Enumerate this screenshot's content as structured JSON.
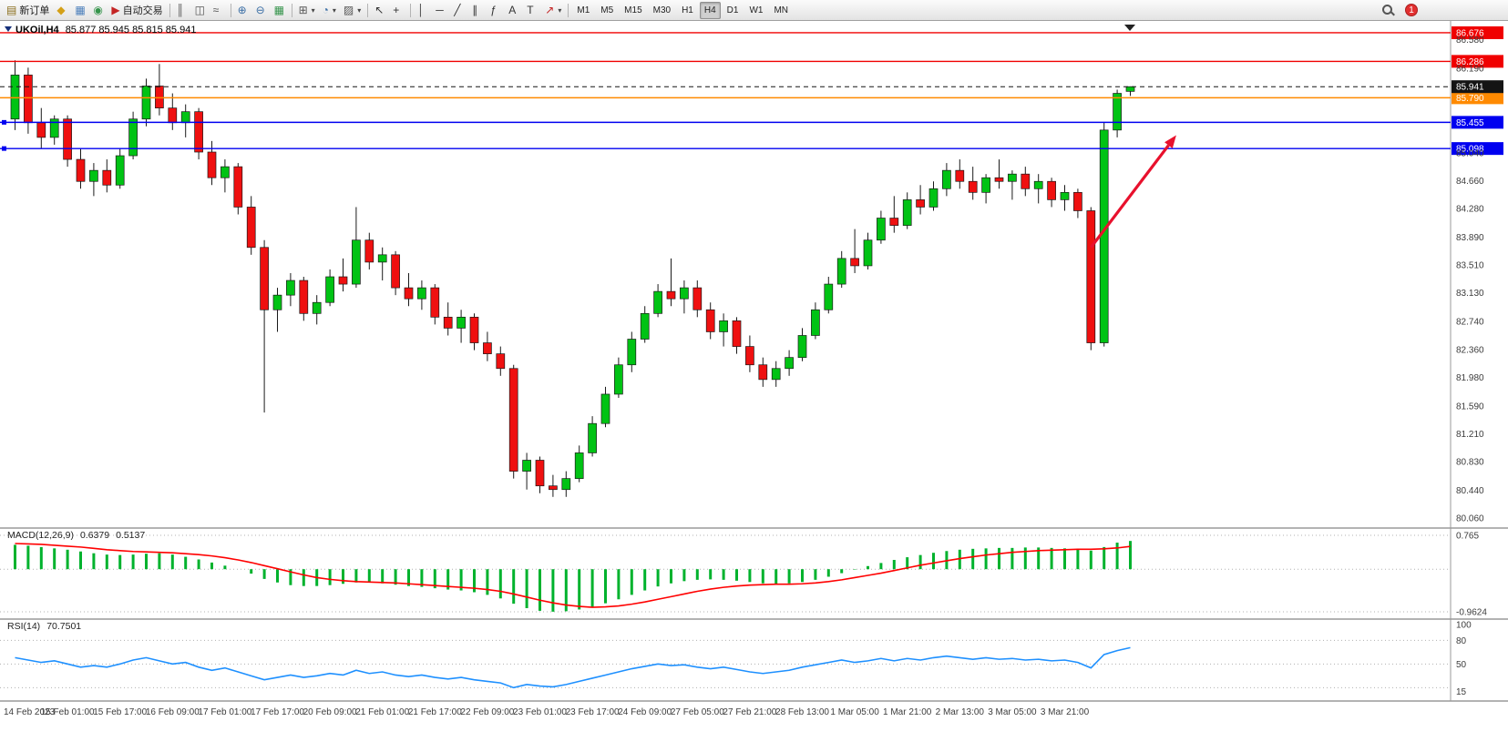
{
  "toolbar": {
    "new_order_label": "新订单",
    "autotrade_label": "自动交易",
    "notification_count": "1",
    "active_timeframe": "H4",
    "timeframe_buttons": [
      "M1",
      "M5",
      "M15",
      "M30",
      "H1",
      "H4",
      "D1",
      "W1",
      "MN"
    ],
    "items": [
      {
        "type": "button",
        "name": "new-order",
        "icon": "▤",
        "icon_color": "#8a6d1a",
        "label": "新订单"
      },
      {
        "type": "button",
        "name": "market-watch",
        "icon": "◆",
        "icon_color": "#d4a017"
      },
      {
        "type": "button",
        "name": "data-window",
        "icon": "▦",
        "icon_color": "#4a7ebb"
      },
      {
        "type": "button",
        "name": "navigator",
        "icon": "◉",
        "icon_color": "#35944b"
      },
      {
        "type": "button",
        "name": "autotrade",
        "icon": "▶",
        "icon_color": "#c42525",
        "label": "自动交易"
      },
      {
        "type": "sep"
      },
      {
        "type": "button",
        "name": "bar-chart",
        "icon": "║",
        "icon_color": "#555555"
      },
      {
        "type": "button",
        "name": "candle-chart",
        "icon": "◫",
        "icon_color": "#555555"
      },
      {
        "type": "button",
        "name": "line-chart",
        "icon": "≈",
        "icon_color": "#555555"
      },
      {
        "type": "sep"
      },
      {
        "type": "button",
        "name": "zoom-in",
        "icon": "⊕",
        "icon_color": "#3a6ea5"
      },
      {
        "type": "button",
        "name": "zoom-out",
        "icon": "⊖",
        "icon_color": "#3a6ea5"
      },
      {
        "type": "button",
        "name": "auto-scroll",
        "icon": "▦",
        "icon_color": "#35944b"
      },
      {
        "type": "sep"
      },
      {
        "type": "button",
        "name": "new-chart",
        "icon": "⊞",
        "icon_color": "#555555",
        "caret": true
      },
      {
        "type": "button",
        "name": "profiles",
        "icon": "◔",
        "icon_color": "#3a6ea5",
        "caret": true
      },
      {
        "type": "button",
        "name": "templates",
        "icon": "▨",
        "icon_color": "#555555",
        "caret": true
      },
      {
        "type": "sep"
      },
      {
        "type": "button",
        "name": "cursor",
        "icon": "↖",
        "icon_color": "#333333"
      },
      {
        "type": "button",
        "name": "crosshair",
        "icon": "+",
        "icon_color": "#333333"
      },
      {
        "type": "sep"
      },
      {
        "type": "button",
        "name": "vertical-line",
        "icon": "│",
        "icon_color": "#333333"
      },
      {
        "type": "button",
        "name": "horizontal-line",
        "icon": "─",
        "icon_color": "#333333"
      },
      {
        "type": "button",
        "name": "trendline",
        "icon": "╱",
        "icon_color": "#333333"
      },
      {
        "type": "button",
        "name": "equidistant-channel",
        "icon": "∥",
        "icon_color": "#333333"
      },
      {
        "type": "button",
        "name": "fibonacci",
        "icon": "ƒ",
        "icon_color": "#333333"
      },
      {
        "type": "button",
        "name": "text",
        "icon": "A",
        "icon_color": "#333333"
      },
      {
        "type": "button",
        "name": "text-label",
        "icon": "T",
        "icon_color": "#333333"
      },
      {
        "type": "button",
        "name": "arrows",
        "icon": "↗",
        "icon_color": "#c42525",
        "caret": true
      },
      {
        "type": "sep"
      }
    ]
  },
  "main_chart": {
    "symbol_label": "UKOil,H4",
    "ohlc_label": "85.877 85.945 85.815 85.941"
  },
  "macd": {
    "label": "MACD(12,26,9)",
    "value_main": "0.6379",
    "value_signal": "0.5137"
  },
  "rsi": {
    "label": "RSI(14)",
    "value": "70.7501"
  },
  "chart_data": [
    {
      "type": "candlestick",
      "symbol": "UKOil",
      "timeframe": "H4",
      "current_ohlc": {
        "open": 85.877,
        "high": 85.945,
        "low": 85.815,
        "close": 85.941
      },
      "ylim": [
        80.0,
        86.75
      ],
      "bull_color": "#00c314",
      "bear_color": "#ef1010",
      "candles": [
        [
          85.5,
          86.3,
          85.35,
          86.1
        ],
        [
          86.1,
          86.2,
          85.3,
          85.45
        ],
        [
          85.45,
          85.65,
          85.1,
          85.25
        ],
        [
          85.25,
          85.55,
          85.15,
          85.5
        ],
        [
          85.5,
          85.55,
          84.85,
          84.95
        ],
        [
          84.95,
          85.1,
          84.55,
          84.65
        ],
        [
          84.65,
          84.9,
          84.45,
          84.8
        ],
        [
          84.8,
          84.95,
          84.5,
          84.6
        ],
        [
          84.6,
          85.1,
          84.55,
          85.0
        ],
        [
          85.0,
          85.6,
          84.95,
          85.5
        ],
        [
          85.5,
          86.05,
          85.4,
          85.95
        ],
        [
          85.95,
          86.25,
          85.55,
          85.65
        ],
        [
          85.65,
          85.85,
          85.35,
          85.45
        ],
        [
          85.45,
          85.7,
          85.25,
          85.6
        ],
        [
          85.6,
          85.65,
          84.95,
          85.05
        ],
        [
          85.05,
          85.2,
          84.6,
          84.7
        ],
        [
          84.7,
          84.95,
          84.5,
          84.85
        ],
        [
          84.85,
          84.9,
          84.2,
          84.3
        ],
        [
          84.3,
          84.45,
          83.65,
          83.75
        ],
        [
          83.75,
          83.85,
          81.5,
          82.9
        ],
        [
          82.9,
          83.2,
          82.6,
          83.1
        ],
        [
          83.1,
          83.4,
          82.95,
          83.3
        ],
        [
          83.3,
          83.35,
          82.75,
          82.85
        ],
        [
          82.85,
          83.1,
          82.7,
          83.0
        ],
        [
          83.0,
          83.45,
          82.95,
          83.35
        ],
        [
          83.35,
          83.6,
          83.15,
          83.25
        ],
        [
          83.25,
          84.3,
          83.2,
          83.85
        ],
        [
          83.85,
          83.95,
          83.45,
          83.55
        ],
        [
          83.55,
          83.75,
          83.3,
          83.65
        ],
        [
          83.65,
          83.7,
          83.1,
          83.2
        ],
        [
          83.2,
          83.4,
          82.95,
          83.05
        ],
        [
          83.05,
          83.3,
          82.9,
          83.2
        ],
        [
          83.2,
          83.25,
          82.7,
          82.8
        ],
        [
          82.8,
          83.0,
          82.55,
          82.65
        ],
        [
          82.65,
          82.9,
          82.45,
          82.8
        ],
        [
          82.8,
          82.85,
          82.35,
          82.45
        ],
        [
          82.45,
          82.6,
          82.2,
          82.3
        ],
        [
          82.3,
          82.4,
          82.0,
          82.1
        ],
        [
          82.1,
          82.15,
          80.6,
          80.7
        ],
        [
          80.7,
          80.95,
          80.45,
          80.85
        ],
        [
          80.85,
          80.9,
          80.4,
          80.5
        ],
        [
          80.5,
          80.65,
          80.35,
          80.45
        ],
        [
          80.45,
          80.7,
          80.35,
          80.6
        ],
        [
          80.6,
          81.05,
          80.55,
          80.95
        ],
        [
          80.95,
          81.45,
          80.9,
          81.35
        ],
        [
          81.35,
          81.85,
          81.3,
          81.75
        ],
        [
          81.75,
          82.25,
          81.7,
          82.15
        ],
        [
          82.15,
          82.6,
          82.05,
          82.5
        ],
        [
          82.5,
          82.95,
          82.45,
          82.85
        ],
        [
          82.85,
          83.25,
          82.8,
          83.15
        ],
        [
          83.15,
          83.6,
          82.95,
          83.05
        ],
        [
          83.05,
          83.3,
          82.85,
          83.2
        ],
        [
          83.2,
          83.3,
          82.8,
          82.9
        ],
        [
          82.9,
          83.0,
          82.5,
          82.6
        ],
        [
          82.6,
          82.85,
          82.4,
          82.75
        ],
        [
          82.75,
          82.8,
          82.3,
          82.4
        ],
        [
          82.4,
          82.55,
          82.05,
          82.15
        ],
        [
          82.15,
          82.25,
          81.85,
          81.95
        ],
        [
          81.95,
          82.2,
          81.85,
          82.1
        ],
        [
          82.1,
          82.35,
          82.0,
          82.25
        ],
        [
          82.25,
          82.65,
          82.2,
          82.55
        ],
        [
          82.55,
          83.0,
          82.5,
          82.9
        ],
        [
          82.9,
          83.35,
          82.85,
          83.25
        ],
        [
          83.25,
          83.7,
          83.2,
          83.6
        ],
        [
          83.6,
          84.0,
          83.4,
          83.5
        ],
        [
          83.5,
          83.95,
          83.45,
          83.85
        ],
        [
          83.85,
          84.25,
          83.8,
          84.15
        ],
        [
          84.15,
          84.45,
          83.95,
          84.05
        ],
        [
          84.05,
          84.5,
          84.0,
          84.4
        ],
        [
          84.4,
          84.6,
          84.2,
          84.3
        ],
        [
          84.3,
          84.65,
          84.25,
          84.55
        ],
        [
          84.55,
          84.9,
          84.45,
          84.8
        ],
        [
          84.8,
          84.95,
          84.55,
          84.65
        ],
        [
          84.65,
          84.85,
          84.4,
          84.5
        ],
        [
          84.5,
          84.75,
          84.35,
          84.7
        ],
        [
          84.7,
          84.95,
          84.55,
          84.65
        ],
        [
          84.65,
          84.8,
          84.4,
          84.75
        ],
        [
          84.75,
          84.85,
          84.45,
          84.55
        ],
        [
          84.55,
          84.75,
          84.35,
          84.65
        ],
        [
          84.65,
          84.7,
          84.3,
          84.4
        ],
        [
          84.4,
          84.6,
          84.25,
          84.5
        ],
        [
          84.5,
          84.55,
          84.15,
          84.25
        ],
        [
          84.25,
          84.3,
          82.35,
          82.45
        ],
        [
          82.45,
          85.45,
          82.4,
          85.35
        ],
        [
          85.35,
          85.9,
          85.25,
          85.85
        ],
        [
          85.877,
          85.945,
          85.815,
          85.941
        ]
      ],
      "levels": [
        {
          "price": 86.676,
          "tag": "86.676",
          "color": "#f00000",
          "style": "solid"
        },
        {
          "price": 86.286,
          "tag": "86.286",
          "color": "#f00000",
          "style": "solid"
        },
        {
          "price": 85.79,
          "tag": "85.790",
          "color": "#ff8a00",
          "style": "solid"
        },
        {
          "price": 85.455,
          "tag": "85.455",
          "color": "#0000f0",
          "style": "solid",
          "handles": true
        },
        {
          "price": 85.098,
          "tag": "85.098",
          "color": "#0000f0",
          "style": "solid",
          "handles": true
        },
        {
          "price": 85.941,
          "tag": "85.941",
          "color": "#141414",
          "style": "dashed",
          "role": "current-price"
        }
      ],
      "y_axis_labels": [
        "86.580",
        "86.190",
        "85.040",
        "84.660",
        "84.280",
        "83.890",
        "83.510",
        "83.130",
        "82.740",
        "82.360",
        "81.980",
        "81.590",
        "81.210",
        "80.830",
        "80.440",
        "80.060"
      ],
      "x_axis_labels": [
        "14 Feb 2023",
        "15 Feb 01:00",
        "15 Feb 17:00",
        "16 Feb 09:00",
        "17 Feb 01:00",
        "17 Feb 17:00",
        "20 Feb 09:00",
        "21 Feb 01:00",
        "21 Feb 17:00",
        "22 Feb 09:00",
        "23 Feb 01:00",
        "23 Feb 17:00",
        "24 Feb 09:00",
        "27 Feb 05:00",
        "27 Feb 21:00",
        "28 Feb 13:00",
        "1 Mar 05:00",
        "1 Mar 21:00",
        "2 Mar 13:00",
        "3 Mar 05:00",
        "3 Mar 21:00"
      ],
      "annotation": {
        "type": "arrow",
        "color": "#e8112d",
        "from_bar": 82,
        "from_price": 83.75,
        "to_bar": 88.5,
        "to_price": 85.28
      }
    },
    {
      "type": "macd",
      "title": "MACD(12,26,9)",
      "current_values": [
        0.6379,
        0.5137
      ],
      "ylim": [
        -0.9624,
        0.765
      ],
      "y_axis_labels": [
        "0.765",
        "-0.9624"
      ],
      "histogram_color": "#00b22d",
      "signal_color": "#ff0000",
      "histogram": [
        0.55,
        0.53,
        0.5,
        0.47,
        0.44,
        0.4,
        0.36,
        0.33,
        0.32,
        0.33,
        0.35,
        0.36,
        0.33,
        0.28,
        0.22,
        0.15,
        0.08,
        0.0,
        -0.1,
        -0.22,
        -0.3,
        -0.36,
        -0.38,
        -0.38,
        -0.36,
        -0.33,
        -0.3,
        -0.3,
        -0.32,
        -0.35,
        -0.38,
        -0.4,
        -0.43,
        -0.46,
        -0.48,
        -0.52,
        -0.58,
        -0.66,
        -0.78,
        -0.88,
        -0.94,
        -0.96,
        -0.95,
        -0.91,
        -0.85,
        -0.77,
        -0.68,
        -0.58,
        -0.48,
        -0.39,
        -0.32,
        -0.27,
        -0.24,
        -0.23,
        -0.24,
        -0.26,
        -0.29,
        -0.32,
        -0.33,
        -0.32,
        -0.29,
        -0.24,
        -0.17,
        -0.09,
        -0.01,
        0.07,
        0.14,
        0.21,
        0.27,
        0.32,
        0.37,
        0.41,
        0.44,
        0.46,
        0.47,
        0.48,
        0.48,
        0.49,
        0.49,
        0.48,
        0.47,
        0.46,
        0.42,
        0.5,
        0.6,
        0.6379
      ],
      "signal": [
        0.58,
        0.57,
        0.56,
        0.54,
        0.52,
        0.5,
        0.47,
        0.44,
        0.42,
        0.4,
        0.39,
        0.38,
        0.37,
        0.35,
        0.33,
        0.3,
        0.26,
        0.21,
        0.15,
        0.08,
        0.01,
        -0.06,
        -0.13,
        -0.19,
        -0.23,
        -0.26,
        -0.28,
        -0.29,
        -0.3,
        -0.31,
        -0.33,
        -0.35,
        -0.37,
        -0.39,
        -0.41,
        -0.43,
        -0.46,
        -0.5,
        -0.56,
        -0.63,
        -0.7,
        -0.76,
        -0.81,
        -0.84,
        -0.86,
        -0.85,
        -0.83,
        -0.79,
        -0.74,
        -0.68,
        -0.62,
        -0.56,
        -0.5,
        -0.45,
        -0.41,
        -0.38,
        -0.36,
        -0.35,
        -0.34,
        -0.34,
        -0.33,
        -0.31,
        -0.28,
        -0.24,
        -0.19,
        -0.14,
        -0.09,
        -0.03,
        0.03,
        0.09,
        0.14,
        0.19,
        0.24,
        0.28,
        0.32,
        0.35,
        0.38,
        0.4,
        0.42,
        0.43,
        0.44,
        0.45,
        0.45,
        0.46,
        0.48,
        0.5137
      ]
    },
    {
      "type": "rsi",
      "title": "RSI(14)",
      "current_value": 70.7501,
      "line_color": "#1e90ff",
      "levels": [
        80,
        50,
        20
      ],
      "y_axis_labels": [
        "100",
        "80",
        "50",
        "15"
      ],
      "values": [
        58,
        55,
        52,
        54,
        50,
        46,
        48,
        46,
        50,
        55,
        58,
        54,
        50,
        52,
        46,
        42,
        45,
        40,
        35,
        30,
        33,
        36,
        33,
        35,
        38,
        36,
        42,
        38,
        40,
        36,
        34,
        36,
        33,
        31,
        33,
        30,
        28,
        26,
        20,
        24,
        22,
        21,
        24,
        28,
        32,
        36,
        40,
        44,
        47,
        50,
        48,
        49,
        46,
        44,
        46,
        43,
        40,
        38,
        40,
        42,
        46,
        49,
        52,
        55,
        52,
        54,
        57,
        54,
        57,
        55,
        58,
        60,
        58,
        56,
        58,
        56,
        57,
        55,
        56,
        54,
        55,
        52,
        45,
        62,
        67,
        70.75
      ]
    }
  ]
}
